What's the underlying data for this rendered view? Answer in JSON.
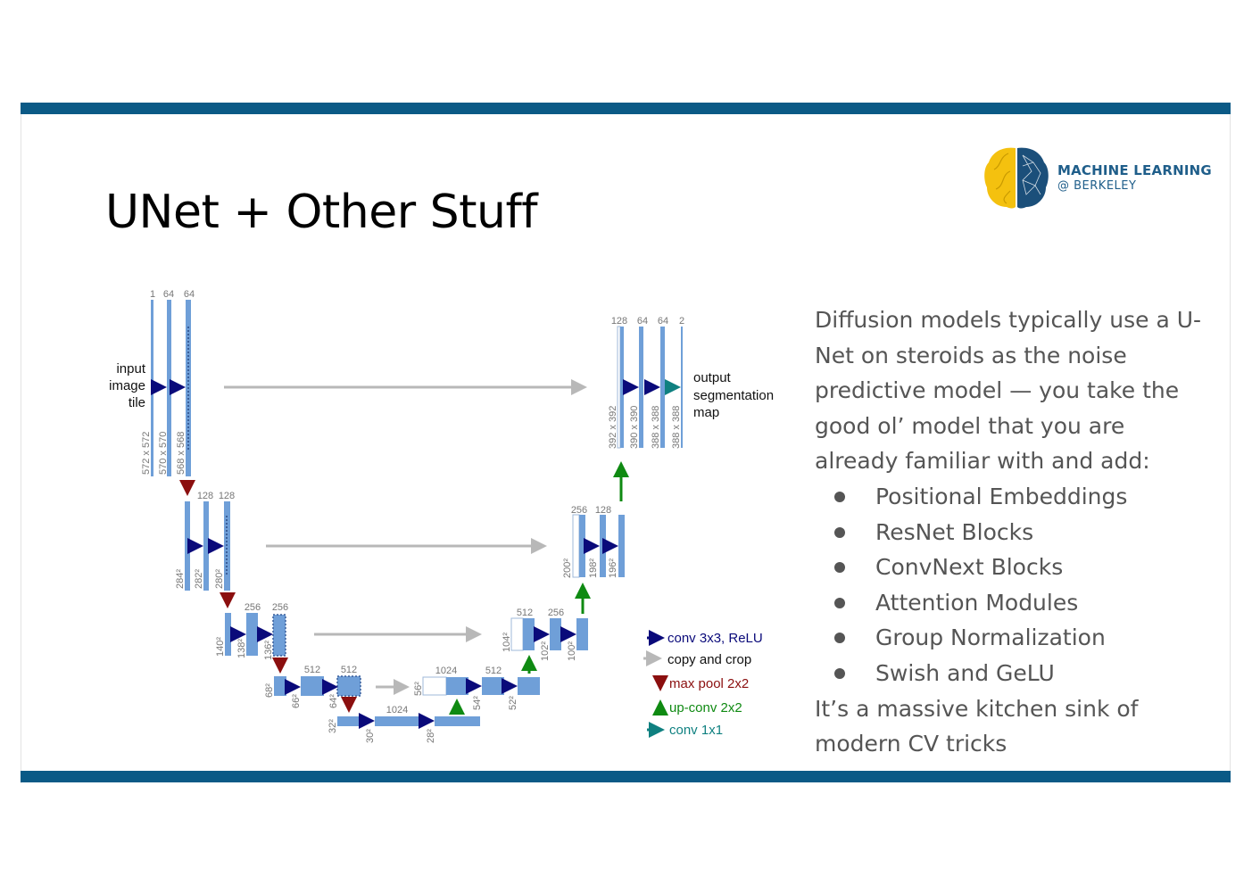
{
  "slide": {
    "title": "UNet + Other Stuff",
    "logo": {
      "line1": "MACHINE LEARNING",
      "line2": "@ BERKELEY"
    },
    "intro": "Diffusion models typically use a U-Net on steroids as the noise predictive model — you take the good ol’ model that you are already familiar with and add:",
    "bullets": [
      "Positional Embeddings",
      "ResNet Blocks",
      "ConvNext Blocks",
      "Attention Modules",
      "Group Normalization",
      "Swish and GeLU"
    ],
    "outro": "It’s a massive kitchen sink of modern CV tricks",
    "colors": {
      "bar": "#0b5a86",
      "block": "#6f9fd8",
      "conv": "#0a0a7a",
      "copy": "#b8b8b8",
      "pool": "#8b0f0f",
      "upconv": "#0f8a12",
      "conv1x1": "#0f8080"
    }
  },
  "diagram": {
    "input_label": [
      "input",
      "image",
      "tile"
    ],
    "output_label": [
      "output",
      "segmentation",
      "map"
    ],
    "level1": {
      "channels": [
        "1",
        "64",
        "64"
      ],
      "sizes": [
        "572 x 572",
        "570 x 570",
        "568 x 568"
      ]
    },
    "level2": {
      "channels": [
        "128",
        "128"
      ],
      "sizes": [
        "284²",
        "282²",
        "280²"
      ]
    },
    "level3": {
      "channels": [
        "256",
        "256"
      ],
      "sizes": [
        "140²",
        "138²",
        "136²"
      ]
    },
    "level4": {
      "channels": [
        "512",
        "512"
      ],
      "sizes": [
        "68²",
        "66²",
        "64²"
      ]
    },
    "level5": {
      "channels": [
        "1024"
      ],
      "sizes": [
        "32²",
        "30²",
        "28²"
      ]
    },
    "up4": {
      "channels": [
        "1024",
        "512"
      ],
      "sizes": [
        "56²",
        "54²",
        "52²"
      ]
    },
    "up3": {
      "channels": [
        "512",
        "256"
      ],
      "sizes": [
        "104²",
        "102²",
        "100²"
      ]
    },
    "up2": {
      "channels": [
        "256",
        "128"
      ],
      "sizes": [
        "200²",
        "198²",
        "196²"
      ]
    },
    "up1": {
      "channels": [
        "128",
        "64",
        "64",
        "2"
      ],
      "sizes": [
        "392 x 392",
        "390 x 390",
        "388 x 388",
        "388 x 388"
      ]
    },
    "legend": [
      "conv 3x3, ReLU",
      "copy and crop",
      "max pool 2x2",
      "up-conv 2x2",
      "conv 1x1"
    ]
  }
}
